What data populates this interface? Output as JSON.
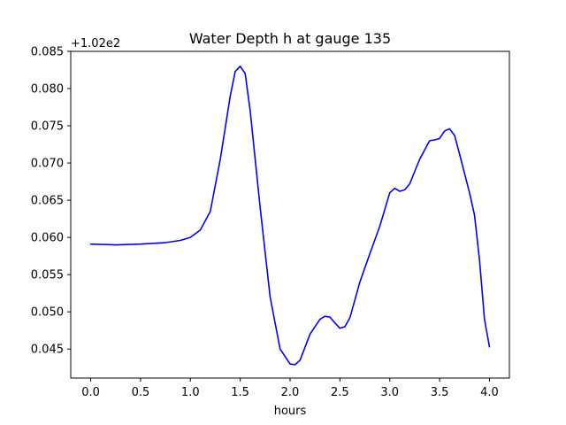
{
  "chart_data": {
    "type": "line",
    "title": "Water Depth h at gauge 135",
    "xlabel": "hours",
    "ylabel": "",
    "offset_label": "+1.02e2",
    "xlim": [
      -0.2,
      4.2
    ],
    "ylim": [
      0.0411,
      0.085
    ],
    "xticks": [
      0.0,
      0.5,
      1.0,
      1.5,
      2.0,
      2.5,
      3.0,
      3.5,
      4.0
    ],
    "xtick_labels": [
      "0.0",
      "0.5",
      "1.0",
      "1.5",
      "2.0",
      "2.5",
      "3.0",
      "3.5",
      "4.0"
    ],
    "yticks": [
      0.045,
      0.05,
      0.055,
      0.06,
      0.065,
      0.07,
      0.075,
      0.08,
      0.085
    ],
    "ytick_labels": [
      "0.045",
      "0.050",
      "0.055",
      "0.060",
      "0.065",
      "0.070",
      "0.075",
      "0.080",
      "0.085"
    ],
    "grid": false,
    "series": [
      {
        "color": "#0000ff",
        "x": [
          0.0,
          0.25,
          0.5,
          0.75,
          0.9,
          1.0,
          1.1,
          1.2,
          1.3,
          1.4,
          1.45,
          1.5,
          1.55,
          1.6,
          1.7,
          1.8,
          1.9,
          2.0,
          2.05,
          2.1,
          2.2,
          2.3,
          2.35,
          2.4,
          2.45,
          2.5,
          2.55,
          2.6,
          2.7,
          2.8,
          2.9,
          3.0,
          3.05,
          3.1,
          3.15,
          3.2,
          3.3,
          3.4,
          3.45,
          3.5,
          3.55,
          3.6,
          3.65,
          3.7,
          3.8,
          3.85,
          3.9,
          3.95,
          4.0
        ],
        "y": [
          0.0591,
          0.059,
          0.0591,
          0.0593,
          0.0596,
          0.06,
          0.061,
          0.0635,
          0.0705,
          0.079,
          0.0823,
          0.083,
          0.082,
          0.077,
          0.064,
          0.052,
          0.045,
          0.043,
          0.0429,
          0.0435,
          0.047,
          0.049,
          0.0494,
          0.0493,
          0.0485,
          0.0478,
          0.048,
          0.0492,
          0.054,
          0.0578,
          0.0615,
          0.066,
          0.0666,
          0.0662,
          0.0664,
          0.0672,
          0.0705,
          0.073,
          0.0731,
          0.0733,
          0.0743,
          0.0746,
          0.0737,
          0.0712,
          0.066,
          0.063,
          0.057,
          0.049,
          0.0453
        ]
      }
    ]
  }
}
